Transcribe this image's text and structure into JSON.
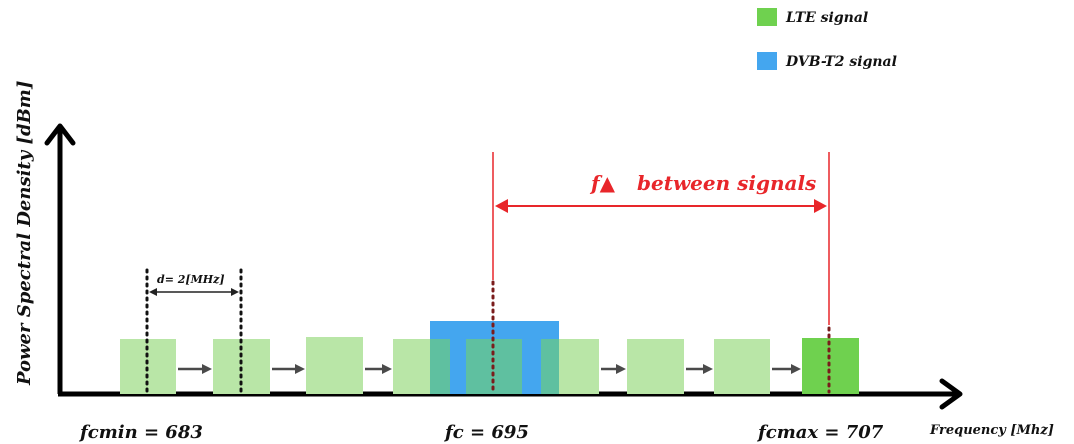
{
  "legend": {
    "items": [
      {
        "label": "LTE signal",
        "color": "#6fd14f"
      },
      {
        "label": "DVB-T2 signal",
        "color": "#44a6ef"
      }
    ]
  },
  "axes": {
    "y_label": "Power Spectral Density [dBm]",
    "x_label": "Frequency [Mhz]"
  },
  "spacing_annotation": "d= 2[MHz]",
  "offset_annotation": {
    "symbol": "f▲",
    "text": "between signals"
  },
  "frequency_labels": {
    "min": "fcmin = 683",
    "center": "fc = 695",
    "max": "fcmax = 707"
  },
  "colors": {
    "lte_light": "#b9e6a7",
    "lte_strong": "#6fd14f",
    "lte_overlap": "#5fc0a0",
    "dvb": "#44a6ef",
    "arrow_red": "#e8262a",
    "axis": "#000000"
  }
}
